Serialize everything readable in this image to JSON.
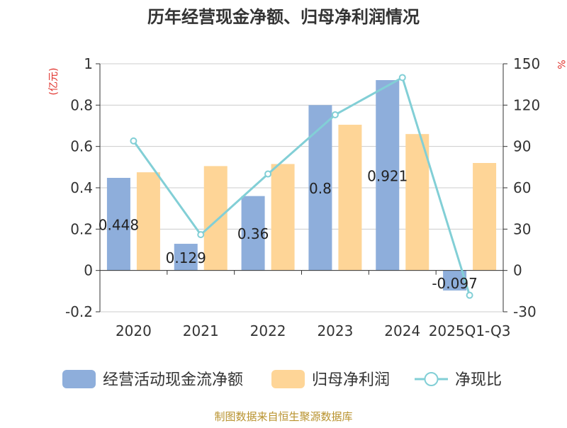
{
  "chart_data": {
    "type": "bar",
    "title": "历年经营现金净额、归母净利润情况",
    "left_unit_label": "(亿元)",
    "right_unit_label": "%",
    "categories": [
      "2020",
      "2021",
      "2022",
      "2023",
      "2024",
      "2025Q1-Q3"
    ],
    "series": [
      {
        "name": "经营活动现金流净额",
        "kind": "bar",
        "axis": "left",
        "color": "#8eaedb",
        "values": [
          0.448,
          0.129,
          0.36,
          0.8,
          0.921,
          -0.097
        ],
        "data_labels": [
          "0.448",
          "0.129",
          "0.36",
          "0.8",
          "0.921",
          "-0.097"
        ]
      },
      {
        "name": "归母净利润",
        "kind": "bar",
        "axis": "left",
        "color": "#fed597",
        "values": [
          0.475,
          0.505,
          0.515,
          0.705,
          0.66,
          0.52
        ]
      },
      {
        "name": "净现比",
        "kind": "line",
        "axis": "right",
        "color": "#82cfd6",
        "values": [
          94,
          26,
          70,
          113,
          140,
          -18
        ]
      }
    ],
    "y_left": {
      "ylim": [
        -0.2,
        1
      ],
      "ticks": [
        "-0.2",
        "0",
        "0.2",
        "0.4",
        "0.6",
        "0.8",
        "1"
      ]
    },
    "y_right": {
      "ylim": [
        -30,
        150
      ],
      "ticks": [
        "-30",
        "0",
        "30",
        "60",
        "90",
        "120",
        "150"
      ]
    },
    "grid": true,
    "legend_position": "bottom",
    "unit_color": "#e0302a"
  },
  "source_text": "制图数据来自恒生聚源数据库",
  "source_color": "#b8922e"
}
